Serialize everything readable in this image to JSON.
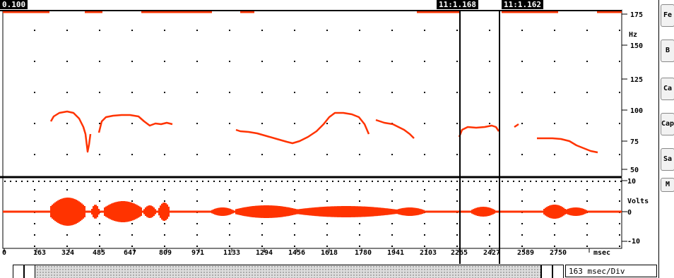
{
  "header": {
    "left_value": "0.100",
    "cursor1": "11:1.168",
    "cursor2": "11:1.162"
  },
  "pitch_axis": {
    "unit": "Hz",
    "ticks": [
      "175",
      "150",
      "125",
      "100",
      "75",
      "50"
    ]
  },
  "wave_axis": {
    "unit": "Volts",
    "ticks": [
      "10",
      "0",
      "-10"
    ]
  },
  "x_axis": {
    "ticks": [
      "0",
      "163",
      "324",
      "485",
      "647",
      "809",
      "971",
      "1133",
      "1294",
      "1456",
      "1618",
      "1780",
      "1941",
      "2103",
      "2265",
      "2427",
      "2589",
      "2750"
    ],
    "unit": "msec"
  },
  "footer": {
    "time_per_div": "163 msec/Div"
  },
  "right_buttons": [
    "Fe",
    "B",
    "Ca",
    "Cap",
    "Sa",
    "M"
  ],
  "colors": {
    "trace": "#ff3300",
    "ink": "#000000",
    "background": "#ffffff"
  }
}
